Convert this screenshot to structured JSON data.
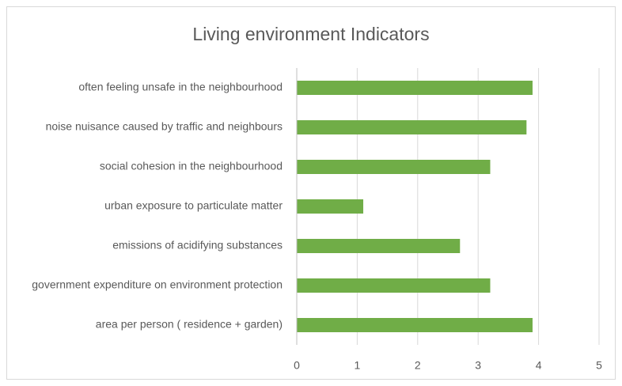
{
  "chart_data": {
    "type": "hbar",
    "title": "Living environment Indicators",
    "categories": [
      "often feeling unsafe in the neighbourhood",
      "noise nuisance caused by traffic and neighbours",
      "social cohesion in the neighbourhood",
      "urban exposure to particulate matter",
      "emissions of acidifying substances",
      "government expenditure on environment protection",
      "area per person ( residence + garden)"
    ],
    "values": [
      3.9,
      3.8,
      3.2,
      1.1,
      2.7,
      3.2,
      3.9
    ],
    "color": "#70ad47",
    "xlim": [
      0,
      5
    ],
    "xticks": [
      0,
      1,
      2,
      3,
      4,
      5
    ],
    "grid": true
  }
}
